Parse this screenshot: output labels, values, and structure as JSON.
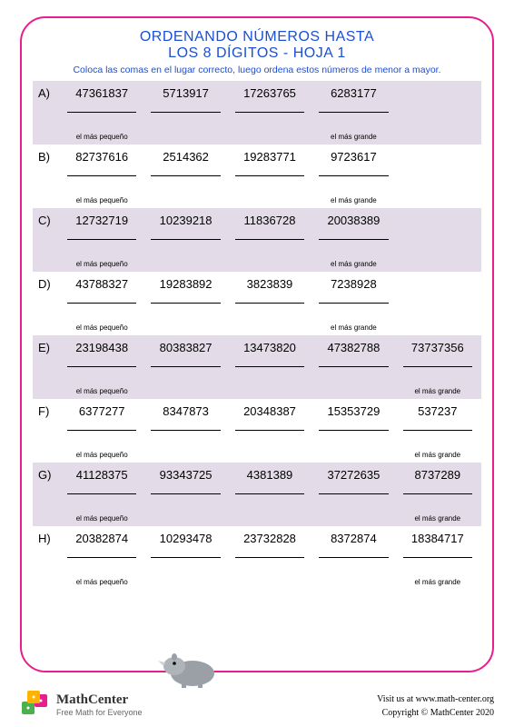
{
  "title_line1": "ORDENANDO NÚMEROS HASTA",
  "title_line2": "LOS 8 DÍGITOS - HOJA 1",
  "instruction": "Coloca las comas en el lugar correcto, luego ordena estos números de menor a mayor.",
  "labels": {
    "smallest": "el más pequeño",
    "largest": "el más grande"
  },
  "rows": [
    {
      "id": "A)",
      "nums": [
        "47361837",
        "5713917",
        "17263765",
        "6283177",
        ""
      ],
      "cols": 4
    },
    {
      "id": "B)",
      "nums": [
        "82737616",
        "2514362",
        "19283771",
        "9723617",
        ""
      ],
      "cols": 4
    },
    {
      "id": "C)",
      "nums": [
        "12732719",
        "10239218",
        "11836728",
        "20038389",
        ""
      ],
      "cols": 4
    },
    {
      "id": "D)",
      "nums": [
        "43788327",
        "19283892",
        "3823839",
        "7238928",
        ""
      ],
      "cols": 4
    },
    {
      "id": "E)",
      "nums": [
        "23198438",
        "80383827",
        "13473820",
        "47382788",
        "73737356"
      ],
      "cols": 5
    },
    {
      "id": "F)",
      "nums": [
        "6377277",
        "8347873",
        "20348387",
        "15353729",
        "537237"
      ],
      "cols": 5
    },
    {
      "id": "G)",
      "nums": [
        "41128375",
        "93343725",
        "4381389",
        "37272635",
        "8737289"
      ],
      "cols": 5
    },
    {
      "id": "H)",
      "nums": [
        "20382874",
        "10293478",
        "23732828",
        "8372874",
        "18384717"
      ],
      "cols": 5
    }
  ],
  "colors": {
    "accent": "#e91e8c",
    "title": "#1a4fd6",
    "shade": "#e3dce8"
  },
  "footer": {
    "brand_name": "MathCenter",
    "brand_tag": "Free Math for Everyone",
    "visit": "Visit us at www.math-center.org",
    "copyright": "Copyright © MathCenter 2020"
  }
}
